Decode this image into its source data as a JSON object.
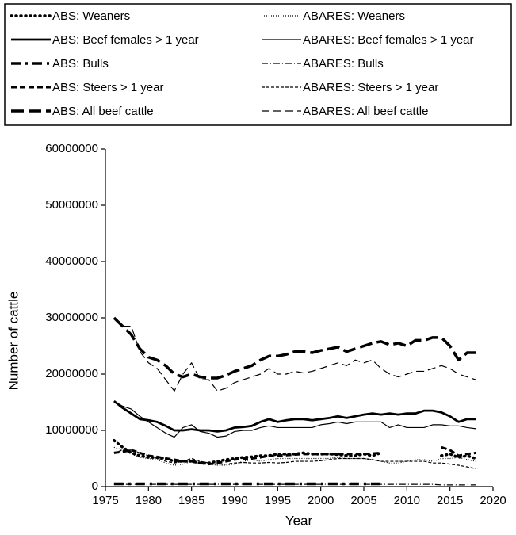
{
  "chart_data": {
    "type": "line",
    "xlabel": "Year",
    "ylabel": "Number of cattle",
    "x": [
      1976,
      1977,
      1978,
      1979,
      1980,
      1981,
      1982,
      1983,
      1984,
      1985,
      1986,
      1987,
      1988,
      1989,
      1990,
      1991,
      1992,
      1993,
      1994,
      1995,
      1996,
      1997,
      1998,
      1999,
      2000,
      2001,
      2002,
      2003,
      2004,
      2005,
      2006,
      2007,
      2008,
      2009,
      2010,
      2011,
      2012,
      2013,
      2014,
      2015,
      2016,
      2017,
      2018
    ],
    "xlim": [
      1975,
      2020
    ],
    "xticks": [
      1975,
      1980,
      1985,
      1990,
      1995,
      2000,
      2005,
      2010,
      2015,
      2020
    ],
    "ylim": [
      0,
      60000000
    ],
    "yticks": [
      0,
      10000000,
      20000000,
      30000000,
      40000000,
      50000000,
      60000000
    ],
    "color": "#000000",
    "series": [
      {
        "name": "ABS: Weaners",
        "dash": "1,5",
        "line_width": 3.5,
        "values": [
          8200000,
          7000000,
          6000000,
          5500000,
          5200000,
          5200000,
          5000000,
          4500000,
          4500000,
          4500000,
          4200000,
          4200000,
          4500000,
          4800000,
          5000000,
          5200000,
          5300000,
          5500000,
          5500000,
          5800000,
          5800000,
          5800000,
          6000000,
          5800000,
          5800000,
          5800000,
          5700000,
          5500000,
          5500000,
          5800000,
          5500000,
          6000000,
          null,
          null,
          null,
          null,
          null,
          null,
          5500000,
          5800000,
          5200000,
          5500000,
          5000000
        ]
      },
      {
        "name": "ABARES: Weaners",
        "dash": "1,2",
        "line_width": 1.2,
        "values": [
          7000000,
          6500000,
          5800000,
          5200000,
          5000000,
          4800000,
          4200000,
          3800000,
          4000000,
          4500000,
          4000000,
          4000000,
          3800000,
          3800000,
          4000000,
          4500000,
          4800000,
          4500000,
          4800000,
          5000000,
          5000000,
          5000000,
          5000000,
          5000000,
          5000000,
          5000000,
          5200000,
          5000000,
          5000000,
          5000000,
          4800000,
          4500000,
          4200000,
          4200000,
          4500000,
          4800000,
          4800000,
          4500000,
          5000000,
          5000000,
          5200000,
          4800000,
          4500000
        ]
      },
      {
        "name": "ABS: Beef females > 1 year",
        "dash": "none",
        "line_width": 2.8,
        "values": [
          15200000,
          14000000,
          13000000,
          12000000,
          11800000,
          11500000,
          10800000,
          10000000,
          10000000,
          10200000,
          10000000,
          10000000,
          9800000,
          10000000,
          10500000,
          10600000,
          10800000,
          11500000,
          12000000,
          11500000,
          11800000,
          12000000,
          12000000,
          11800000,
          12000000,
          12200000,
          12500000,
          12200000,
          12500000,
          12800000,
          13000000,
          12800000,
          13000000,
          12800000,
          13000000,
          13000000,
          13500000,
          13500000,
          13200000,
          12500000,
          11500000,
          12000000,
          12000000
        ]
      },
      {
        "name": "ABARES: Beef females > 1 year",
        "dash": "none",
        "line_width": 1.2,
        "values": [
          15200000,
          14300000,
          13800000,
          12500000,
          11500000,
          10500000,
          9500000,
          8800000,
          10500000,
          11000000,
          9800000,
          9500000,
          8800000,
          9000000,
          9800000,
          10000000,
          10000000,
          10500000,
          10800000,
          10500000,
          10500000,
          10500000,
          10500000,
          10500000,
          11000000,
          11200000,
          11500000,
          11200000,
          11500000,
          11500000,
          11500000,
          11500000,
          10500000,
          11000000,
          10500000,
          10500000,
          10500000,
          11000000,
          11000000,
          10800000,
          10800000,
          10500000,
          10300000
        ]
      },
      {
        "name": "ABS: Bulls",
        "dash": "12,6,3,6",
        "line_width": 3.5,
        "values": [
          500000,
          500000,
          500000,
          500000,
          500000,
          500000,
          500000,
          500000,
          500000,
          500000,
          500000,
          500000,
          500000,
          500000,
          500000,
          500000,
          500000,
          500000,
          500000,
          500000,
          500000,
          500000,
          500000,
          500000,
          500000,
          500000,
          500000,
          500000,
          500000,
          500000,
          500000,
          500000,
          null,
          null,
          null,
          null,
          null,
          null,
          null,
          null,
          null,
          null,
          null
        ]
      },
      {
        "name": "ABARES: Bulls",
        "dash": "8,3,1,3",
        "line_width": 1.2,
        "values": [
          400000,
          400000,
          400000,
          400000,
          400000,
          400000,
          400000,
          400000,
          400000,
          400000,
          400000,
          400000,
          400000,
          400000,
          400000,
          400000,
          400000,
          400000,
          400000,
          400000,
          400000,
          400000,
          400000,
          400000,
          400000,
          400000,
          400000,
          400000,
          400000,
          400000,
          400000,
          400000,
          400000,
          400000,
          400000,
          400000,
          400000,
          400000,
          300000,
          300000,
          300000,
          300000,
          300000
        ]
      },
      {
        "name": "ABS: Steers > 1 year",
        "dash": "7,4",
        "line_width": 3,
        "values": [
          6000000,
          6200000,
          6500000,
          6000000,
          5500000,
          5300000,
          5000000,
          4800000,
          4500000,
          4500000,
          4200000,
          4000000,
          4200000,
          4500000,
          4800000,
          5000000,
          5000000,
          5200000,
          5500000,
          5500000,
          5600000,
          5700000,
          5800000,
          5800000,
          5800000,
          5800000,
          5800000,
          5800000,
          5800000,
          5800000,
          5900000,
          6000000,
          null,
          null,
          null,
          null,
          null,
          null,
          7000000,
          6500000,
          5500000,
          5800000,
          6000000
        ]
      },
      {
        "name": "ABARES: Steers > 1 year",
        "dash": "4,2",
        "line_width": 1.2,
        "values": [
          6000000,
          6500000,
          6500000,
          6000000,
          5500000,
          5000000,
          4500000,
          4200000,
          4500000,
          5000000,
          4500000,
          4200000,
          4000000,
          4000000,
          4200000,
          4300000,
          4200000,
          4200000,
          4300000,
          4200000,
          4300000,
          4500000,
          4500000,
          4500000,
          4600000,
          4800000,
          5000000,
          5000000,
          5000000,
          5000000,
          4800000,
          4500000,
          4500000,
          4500000,
          4500000,
          4500000,
          4500000,
          4200000,
          4200000,
          4000000,
          3800000,
          3500000,
          3200000
        ]
      },
      {
        "name": "ABS: All beef cattle",
        "dash": "16,6",
        "line_width": 3.5,
        "values": [
          30000000,
          28500000,
          27000000,
          24500000,
          23000000,
          22500000,
          21500000,
          20000000,
          19500000,
          20000000,
          19500000,
          19300000,
          19300000,
          19800000,
          20500000,
          21000000,
          21500000,
          22500000,
          23200000,
          23200000,
          23500000,
          24000000,
          24000000,
          23800000,
          24200000,
          24500000,
          24800000,
          24000000,
          24500000,
          25000000,
          25500000,
          25800000,
          25200000,
          25500000,
          25000000,
          26000000,
          26000000,
          26500000,
          26500000,
          25000000,
          22500000,
          23800000,
          23800000
        ]
      },
      {
        "name": "ABARES: All beef cattle",
        "dash": "10,5",
        "line_width": 1.2,
        "values": [
          30000000,
          28500000,
          28500000,
          24000000,
          22000000,
          21000000,
          19000000,
          17000000,
          20000000,
          22000000,
          19000000,
          19000000,
          17000000,
          17500000,
          18500000,
          19000000,
          19500000,
          20000000,
          21000000,
          20000000,
          20000000,
          20500000,
          20200000,
          20500000,
          21000000,
          21500000,
          22000000,
          21500000,
          22500000,
          22000000,
          22500000,
          21000000,
          20000000,
          19500000,
          20000000,
          20500000,
          20500000,
          21000000,
          21500000,
          21000000,
          20000000,
          19500000,
          19000000
        ]
      }
    ]
  }
}
